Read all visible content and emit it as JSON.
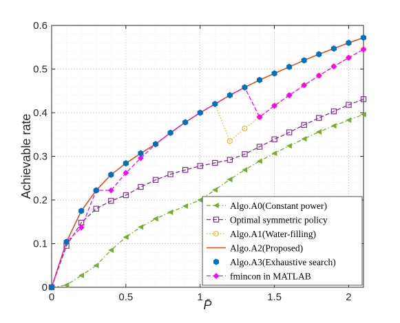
{
  "chart_data": {
    "type": "line",
    "xlabel": "P̄",
    "ylabel": "Achievable rate",
    "xlim": [
      0,
      2.1
    ],
    "ylim": [
      0,
      0.6
    ],
    "xticks": [
      0,
      0.5,
      1,
      1.5,
      2
    ],
    "xtick_labels": [
      "0",
      "0.5",
      "1",
      "1.5",
      "2"
    ],
    "yticks": [
      0,
      0.1,
      0.2,
      0.3,
      0.4,
      0.5,
      0.6
    ],
    "ytick_labels": [
      "0",
      "0.1",
      "0.2",
      "0.3",
      "0.4",
      "0.5",
      "0.6"
    ],
    "grid": "major and minor, dotted",
    "legend_position": "bottom-right",
    "series": [
      {
        "name": "Algo.A0(Constant power)",
        "color": "#77AC30",
        "line": "dashdot",
        "marker": "triangle-left",
        "x": [
          0,
          0.1,
          0.2,
          0.3,
          0.4,
          0.5,
          0.6,
          0.7,
          0.8,
          0.9,
          1.0,
          1.1,
          1.2,
          1.3,
          1.4,
          1.5,
          1.6,
          1.7,
          1.8,
          1.9,
          2.0,
          2.1
        ],
        "y": [
          0,
          0.005,
          0.027,
          0.05,
          0.085,
          0.115,
          0.138,
          0.157,
          0.172,
          0.186,
          0.2,
          0.223,
          0.247,
          0.269,
          0.289,
          0.307,
          0.324,
          0.34,
          0.356,
          0.37,
          0.383,
          0.396
        ]
      },
      {
        "name": "Optimal symmetric policy",
        "color": "#7E2F8E",
        "line": "dashed",
        "marker": "square",
        "x": [
          0,
          0.1,
          0.2,
          0.3,
          0.4,
          0.5,
          0.6,
          0.7,
          0.8,
          0.9,
          1.0,
          1.1,
          1.2,
          1.3,
          1.4,
          1.5,
          1.6,
          1.7,
          1.8,
          1.9,
          2.0,
          2.1
        ],
        "y": [
          0,
          0.095,
          0.148,
          0.18,
          0.198,
          0.211,
          0.23,
          0.246,
          0.259,
          0.269,
          0.278,
          0.285,
          0.292,
          0.305,
          0.322,
          0.339,
          0.355,
          0.372,
          0.388,
          0.403,
          0.418,
          0.431
        ]
      },
      {
        "name": "Algo.A1(Water-filling)",
        "color": "#EDB120",
        "line": "dotted",
        "marker": "circle",
        "x": [
          0,
          0.1,
          0.2,
          0.3,
          0.4,
          0.5,
          0.6,
          0.7,
          0.8,
          0.9,
          1.0,
          1.1,
          1.2,
          1.3,
          1.4,
          1.5,
          1.6,
          1.7,
          1.8,
          1.9,
          2.0,
          2.1
        ],
        "y": [
          0,
          0.104,
          0.175,
          0.222,
          0.258,
          0.284,
          0.307,
          0.328,
          0.354,
          0.378,
          0.4,
          0.42,
          0.335,
          0.364,
          0.39,
          0.416,
          0.44,
          0.463,
          0.485,
          0.506,
          0.526,
          0.545
        ]
      },
      {
        "name": "Algo.A2(Proposed)",
        "color": "#D95319",
        "line": "solid",
        "marker": "none",
        "x": [
          0,
          0.1,
          0.2,
          0.3,
          0.4,
          0.5,
          0.6,
          0.7,
          0.8,
          0.9,
          1.0,
          1.1,
          1.2,
          1.3,
          1.4,
          1.5,
          1.6,
          1.7,
          1.8,
          1.9,
          2.0,
          2.1
        ],
        "y": [
          0,
          0.104,
          0.175,
          0.222,
          0.258,
          0.284,
          0.307,
          0.328,
          0.354,
          0.378,
          0.4,
          0.42,
          0.44,
          0.458,
          0.475,
          0.49,
          0.505,
          0.52,
          0.534,
          0.547,
          0.56,
          0.572
        ]
      },
      {
        "name": "Algo.A3(Exhaustive search)",
        "color": "#0072BD",
        "line": "none",
        "marker": "star",
        "x": [
          0,
          0.1,
          0.2,
          0.3,
          0.4,
          0.5,
          0.6,
          0.7,
          0.8,
          0.9,
          1.0,
          1.1,
          1.2,
          1.3,
          1.4,
          1.5,
          1.6,
          1.7,
          1.8,
          1.9,
          2.0,
          2.1
        ],
        "y": [
          0,
          0.104,
          0.175,
          0.222,
          0.258,
          0.284,
          0.307,
          0.328,
          0.354,
          0.378,
          0.4,
          0.42,
          0.44,
          0.458,
          0.475,
          0.49,
          0.505,
          0.52,
          0.534,
          0.547,
          0.56,
          0.572
        ]
      },
      {
        "name": "fmincon in MATLAB",
        "color": "#FF00FF",
        "line": "dashed",
        "marker": "diamond",
        "x": [
          0,
          0.1,
          0.2,
          0.3,
          0.4,
          0.5,
          0.6,
          0.7,
          0.8,
          0.9,
          1.0,
          1.1,
          1.2,
          1.3,
          1.4,
          1.5,
          1.6,
          1.7,
          1.8,
          1.9,
          2.0,
          2.1
        ],
        "y": [
          0,
          0.104,
          0.137,
          0.222,
          0.222,
          0.262,
          0.296,
          0.328,
          0.354,
          0.378,
          0.4,
          0.42,
          0.44,
          0.458,
          0.39,
          0.416,
          0.44,
          0.463,
          0.485,
          0.506,
          0.526,
          0.545
        ]
      }
    ]
  }
}
